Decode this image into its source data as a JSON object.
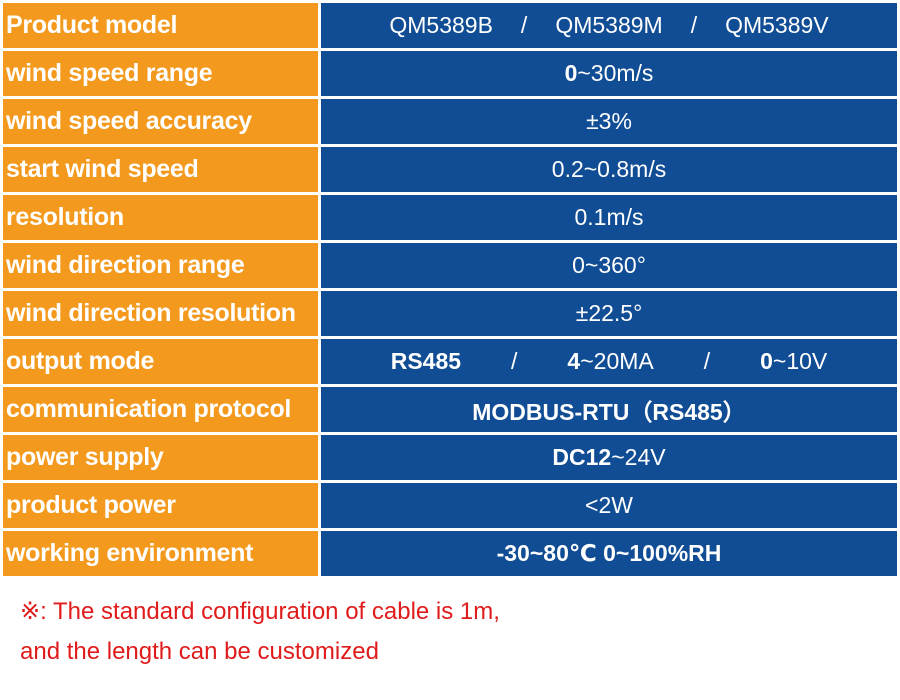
{
  "rows": [
    {
      "label": "Product model",
      "v": [
        "QM5389B",
        "/",
        "QM5389M",
        "/",
        "QM5389V"
      ]
    },
    {
      "label": "wind speed range",
      "b": "0",
      "r": "~30m/s"
    },
    {
      "label": "wind speed accuracy",
      "r": "±3%"
    },
    {
      "label": "start wind speed",
      "r": "0.2~0.8m/s"
    },
    {
      "label": "resolution",
      "r": "0.1m/s"
    },
    {
      "label": "wind direction range",
      "r": "0~360°"
    },
    {
      "label": "wind direction resolution",
      "r": "±22.5°"
    },
    {
      "label": "output mode",
      "a": "RS485",
      "s1": "/",
      "c_b": "4",
      "c_r": "~20MA",
      "s2": "/",
      "d_b": "0",
      "d_r": "~10V"
    },
    {
      "label": "communication protocol",
      "b": "MODBUS-RTU（RS485）"
    },
    {
      "label": "power supply",
      "b": "DC12",
      "r": "~24V"
    },
    {
      "label": "product power",
      "r": "<2W"
    },
    {
      "label": "working environment",
      "b": "-30~80℃ 0~100%RH"
    }
  ],
  "note": {
    "line1": "※: The standard configuration of cable is 1m,",
    "line2": "and the length can be customized"
  }
}
